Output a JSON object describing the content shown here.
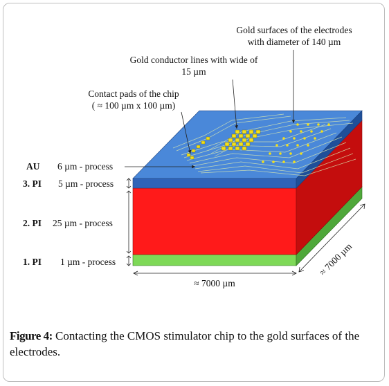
{
  "annotations": {
    "gold_surfaces_line1": "Gold surfaces of the electrodes",
    "gold_surfaces_line2": "with diameter of 140 µm",
    "conductor_line1": "Gold conductor lines with wide of",
    "conductor_line2": "15 µm",
    "pads_line1": "Contact pads of the chip",
    "pads_line2": "( ≈ 100 µm x 100 µm)"
  },
  "layers": [
    {
      "id": "AU",
      "label": "AU",
      "process": "6 µm - process",
      "color": "#5b8fd6"
    },
    {
      "id": "PI3",
      "label": "3. PI",
      "process": "5 µm - process",
      "color": "#2f63b8"
    },
    {
      "id": "PI2",
      "label": "2. PI",
      "process": "25 µm - process",
      "color": "#ff1a1a"
    },
    {
      "id": "PI1",
      "label": "1. PI",
      "process": "1 µm - process",
      "color": "#7ed957"
    }
  ],
  "dimensions": {
    "width_label": "≈ 7000 µm",
    "depth_label": "≈ 7000 µm"
  },
  "caption": {
    "figure_label": "Figure 4:",
    "text": " Contacting the CMOS stimulator chip to the gold surfaces of the electrodes."
  },
  "colors": {
    "top_face": "#4a88d9",
    "blue_front": "#2f63b8",
    "blue_side": "#1f4f99",
    "red_front": "#ff1a1a",
    "red_side": "#c40d0d",
    "green_front": "#7ed957",
    "green_side": "#4fa83a",
    "gold": "#f2e01c"
  }
}
